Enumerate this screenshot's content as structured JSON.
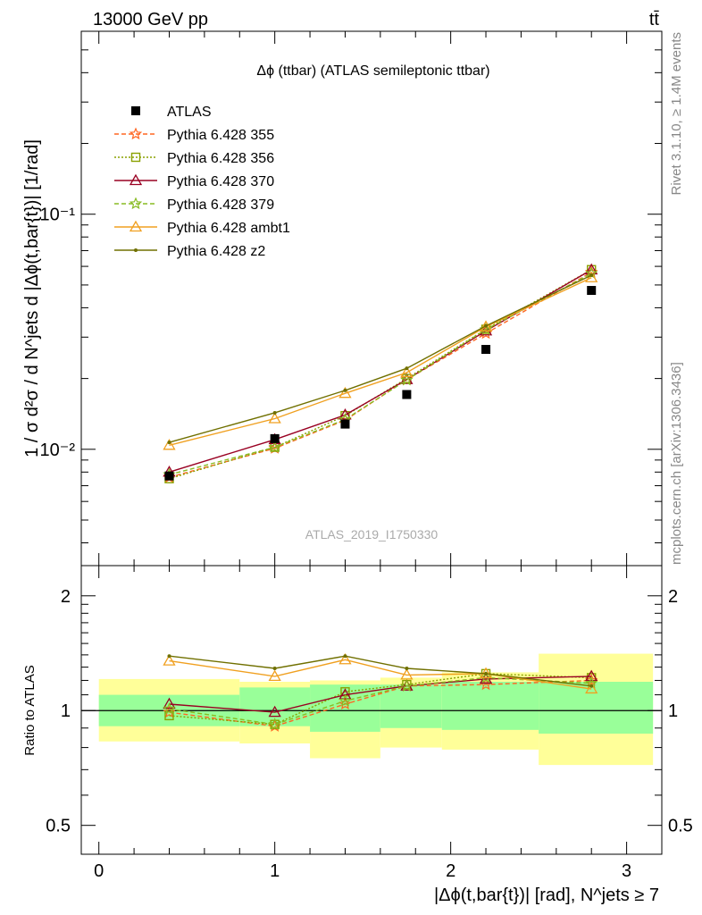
{
  "header": {
    "energy_label": "13000 GeV pp",
    "process_label": "tt̄"
  },
  "side_labels": {
    "rivet": "Rivet 3.1.10, ≥ 1.4M events",
    "url": "mcplots.cern.ch [arXiv:1306.3436]"
  },
  "chart_data": [
    {
      "type": "line",
      "title": "Δϕ (ttbar) (ATLAS semileptonic ttbar)",
      "ylabel": "1 / σ d²σ / d N^jets d |Δϕ(t,bar{t})| [1/rad]",
      "watermark": "ATLAS_2019_I1750330",
      "yscale": "log",
      "ylim": [
        0.0032,
        0.6
      ],
      "xlim": [
        -0.1,
        3.2
      ],
      "y_tick_labels": [
        "10⁻²",
        "10⁻¹"
      ],
      "legend_position": "top-left",
      "x": [
        0.4,
        1.0,
        1.4,
        1.75,
        2.2,
        2.8
      ],
      "series": [
        {
          "name": "ATLAS",
          "color": "#000000",
          "marker": "square",
          "line": "none",
          "values": [
            0.0077,
            0.0111,
            0.0128,
            0.0171,
            0.0266,
            0.0474
          ]
        },
        {
          "name": "Pythia 6.428 355",
          "color": "#ff6622",
          "marker": "star",
          "line": "dashed",
          "values": [
            0.0076,
            0.0101,
            0.0133,
            0.0198,
            0.0311,
            0.0567
          ]
        },
        {
          "name": "Pythia 6.428 356",
          "color": "#8aa000",
          "marker": "open-square",
          "line": "dotted",
          "values": [
            0.0075,
            0.0102,
            0.0139,
            0.02,
            0.0324,
            0.0581
          ]
        },
        {
          "name": "Pythia 6.428 370",
          "color": "#990022",
          "marker": "open-triangle",
          "line": "solid",
          "values": [
            0.008,
            0.011,
            0.014,
            0.0198,
            0.0319,
            0.058
          ]
        },
        {
          "name": "Pythia 6.428 379",
          "color": "#88bb22",
          "marker": "star",
          "line": "dashed",
          "values": [
            0.0078,
            0.0102,
            0.0134,
            0.0197,
            0.0323,
            0.056
          ]
        },
        {
          "name": "Pythia 6.428 ambt1",
          "color": "#f0a020",
          "marker": "open-triangle",
          "line": "solid",
          "values": [
            0.0104,
            0.0135,
            0.0173,
            0.0212,
            0.0332,
            0.0537
          ]
        },
        {
          "name": "Pythia 6.428 z2",
          "color": "#707000",
          "marker": "dot",
          "line": "solid",
          "values": [
            0.0107,
            0.0143,
            0.0178,
            0.0221,
            0.0335,
            0.055
          ]
        }
      ]
    },
    {
      "type": "line",
      "ylabel": "Ratio to ATLAS",
      "xlabel": "|Δϕ(t,bar{t})| [rad], N^jets ≥ 7",
      "yscale": "log",
      "ylim": [
        0.42,
        2.4
      ],
      "xlim": [
        -0.1,
        3.2
      ],
      "y_tick_labels": [
        "0.5",
        "1",
        "2"
      ],
      "x_tick_labels": [
        "0",
        "1",
        "2",
        "3"
      ],
      "x": [
        0.4,
        1.0,
        1.4,
        1.75,
        2.2,
        2.8
      ],
      "uncertainty_bands": [
        {
          "xlow": 0.0,
          "xhigh": 0.8,
          "inner": [
            0.91,
            1.1
          ],
          "outer": [
            0.83,
            1.21
          ]
        },
        {
          "xlow": 0.8,
          "xhigh": 1.2,
          "inner": [
            0.91,
            1.15
          ],
          "outer": [
            0.82,
            1.19
          ]
        },
        {
          "xlow": 1.2,
          "xhigh": 1.6,
          "inner": [
            0.88,
            1.17
          ],
          "outer": [
            0.75,
            1.2
          ]
        },
        {
          "xlow": 1.6,
          "xhigh": 1.95,
          "inner": [
            0.9,
            1.17
          ],
          "outer": [
            0.8,
            1.22
          ]
        },
        {
          "xlow": 1.95,
          "xhigh": 2.5,
          "inner": [
            0.89,
            1.19
          ],
          "outer": [
            0.79,
            1.26
          ]
        },
        {
          "xlow": 2.5,
          "xhigh": 3.15,
          "inner": [
            0.87,
            1.19
          ],
          "outer": [
            0.72,
            1.41
          ]
        }
      ],
      "series": [
        {
          "name": "Pythia 6.428 355",
          "values": [
            0.99,
            0.91,
            1.04,
            1.16,
            1.17,
            1.2
          ]
        },
        {
          "name": "Pythia 6.428 356",
          "values": [
            0.97,
            0.92,
            1.12,
            1.17,
            1.25,
            1.22
          ]
        },
        {
          "name": "Pythia 6.428 370",
          "values": [
            1.04,
            0.99,
            1.1,
            1.16,
            1.21,
            1.23
          ]
        },
        {
          "name": "Pythia 6.428 379",
          "values": [
            1.01,
            0.92,
            1.06,
            1.16,
            1.22,
            1.18
          ]
        },
        {
          "name": "Pythia 6.428 ambt1",
          "values": [
            1.35,
            1.23,
            1.36,
            1.24,
            1.25,
            1.14
          ]
        },
        {
          "name": "Pythia 6.428 z2",
          "values": [
            1.39,
            1.29,
            1.39,
            1.29,
            1.25,
            1.16
          ]
        }
      ]
    }
  ]
}
